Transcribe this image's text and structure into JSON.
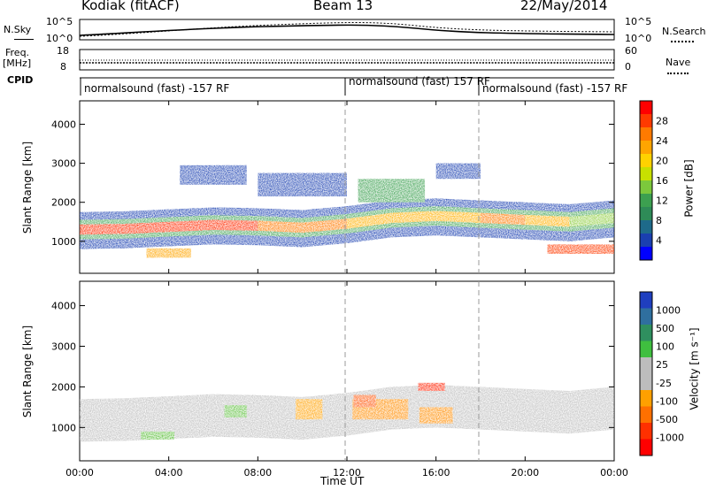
{
  "header": {
    "site": "Kodiak (fitACF)",
    "beam": "Beam 13",
    "date": "22/May/2014"
  },
  "strips": {
    "nsky_label": "N.Sky",
    "nsky_ticks": [
      "10^5",
      "10^0"
    ],
    "nsearch_label": "N.Search",
    "nsearch_ticks": [
      "10^5",
      "10^0"
    ],
    "freq_label": "Freq.",
    "freq_unit": "[MHz]",
    "freq_ticks": [
      "18",
      "8"
    ],
    "nave_label": "Nave",
    "nave_ticks": [
      "60",
      "0"
    ],
    "cpid_label": "CPID",
    "cpid_segments": [
      {
        "start": "00:00",
        "label": "normalsound (fast) -157 RF"
      },
      {
        "start": "12:00",
        "label": "normalsound (fast) 157 RF"
      },
      {
        "start": "18:00",
        "label": "normalsound (fast) -157 RF"
      }
    ]
  },
  "colorbars": {
    "power": {
      "label": "Power [dB]",
      "ticks": [
        "28",
        "24",
        "20",
        "16",
        "12",
        "8",
        "4"
      ],
      "colors": [
        "#ff0000",
        "#ff3a00",
        "#ff7a00",
        "#ffa500",
        "#ffd200",
        "#c8e000",
        "#7cc83c",
        "#3ca050",
        "#2e8b57",
        "#1e6a8a",
        "#1a3fb0",
        "#0000ff"
      ]
    },
    "velocity": {
      "label": "Velocity [m s⁻¹]",
      "ticks": [
        "1000",
        "500",
        "100",
        "25",
        "-25",
        "-100",
        "-500",
        "-1000"
      ],
      "colors": [
        "#1f3fbf",
        "#2f6f9f",
        "#2f8f5f",
        "#3fbf3f",
        "#bdbdbd",
        "#bdbdbd",
        "#ffa000",
        "#ff7000",
        "#ff3000",
        "#ff0000"
      ]
    }
  },
  "chart_data": [
    {
      "type": "heatmap",
      "title": "Beam 13",
      "parameter": "Power",
      "xlabel": "",
      "ylabel": "Slant Range [km]",
      "y_ticks": [
        1000,
        2000,
        3000,
        4000
      ],
      "ylim": [
        180,
        4600
      ],
      "colorbar_range": [
        0,
        30
      ],
      "bands": [
        {
          "x": [
            "00:00",
            "02:00",
            "04:00",
            "06:00",
            "08:00",
            "10:00",
            "12:00",
            "14:00",
            "16:00",
            "18:00",
            "20:00",
            "22:00",
            "24:00"
          ],
          "center_km": [
            1300,
            1320,
            1370,
            1420,
            1400,
            1350,
            1450,
            1600,
            1650,
            1600,
            1550,
            1500,
            1600
          ],
          "peak_power_db": [
            26,
            27,
            26,
            26,
            24,
            22,
            20,
            18,
            20,
            22,
            20,
            16,
            14
          ]
        }
      ]
    },
    {
      "type": "heatmap",
      "parameter": "Velocity",
      "xlabel": "Time UT",
      "ylabel": "Slant Range [km]",
      "y_ticks": [
        1000,
        2000,
        3000,
        4000
      ],
      "ylim": [
        180,
        4600
      ],
      "colorbar_range": [
        -1000,
        1000
      ],
      "x_ticks": [
        "00:00",
        "04:00",
        "08:00",
        "12:00",
        "16:00",
        "20:00",
        "00:00"
      ],
      "xlim": [
        "00:00",
        "24:00"
      ]
    }
  ],
  "axis": {
    "y_title": "Slant Range [km]",
    "x_title": "Time UT",
    "x_ticks": [
      "00:00",
      "04:00",
      "08:00",
      "12:00",
      "16:00",
      "20:00",
      "00:00"
    ],
    "y_ticks": [
      "1000",
      "2000",
      "3000",
      "4000"
    ]
  }
}
